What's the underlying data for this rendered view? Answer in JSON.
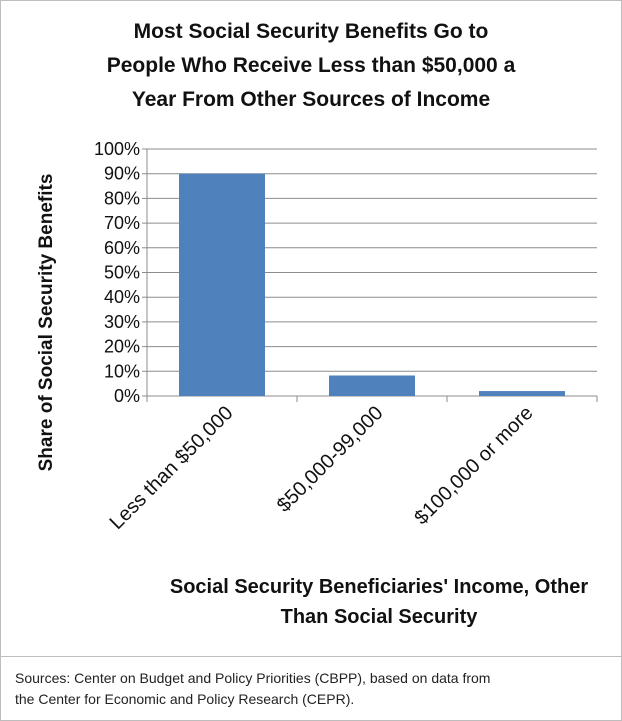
{
  "chart_data": {
    "type": "bar",
    "title": "Most Social Security Benefits Go to People Who Receive Less than $50,000 a Year From Other Sources of Income",
    "title_lines": [
      "Most Social Security Benefits Go to",
      "People Who Receive Less than $50,000 a",
      "Year From Other Sources of Income"
    ],
    "categories": [
      "Less than $50,000",
      "$50,000-99,000",
      "$100,000 or more"
    ],
    "values": [
      90,
      8.3,
      2
    ],
    "ylabel": "Share of Social Security Benefits",
    "xlabel": "Social Security Beneficiaries' Income, Other Than Social Security",
    "xlabel_lines": [
      "Social Security Beneficiaries' Income, Other",
      "Than Social Security"
    ],
    "ylim": [
      0,
      100
    ],
    "yticks": [
      "0%",
      "10%",
      "20%",
      "30%",
      "40%",
      "50%",
      "60%",
      "70%",
      "80%",
      "90%",
      "100%"
    ],
    "grid": true,
    "bar_color": "#4f81bd"
  },
  "sources": {
    "lines": [
      "Sources:  Center on Budget and Policy Priorities (CBPP), based on data from",
      "the Center for Economic and Policy Research (CEPR)."
    ]
  }
}
